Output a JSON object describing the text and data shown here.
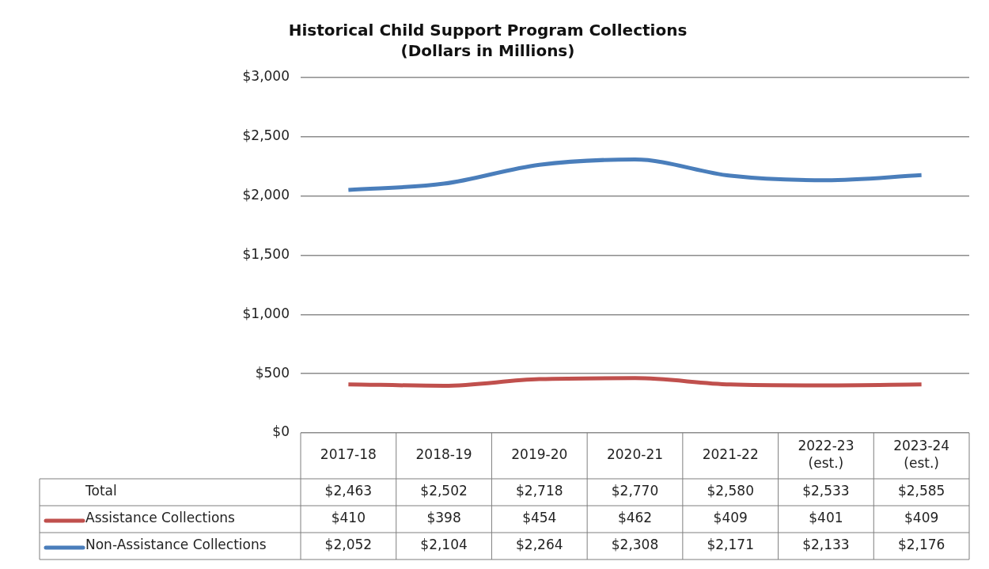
{
  "chart_data": {
    "type": "line",
    "title": "Historical Child Support Program Collections",
    "subtitle": "(Dollars in Millions)",
    "categories": [
      "2017-18",
      "2018-19",
      "2019-20",
      "2020-21",
      "2021-22",
      "2022-23 (est.)",
      "2023-24 (est.)"
    ],
    "series": [
      {
        "name": "Assistance Collections",
        "color": "#c0504d",
        "values": [
          410,
          398,
          454,
          462,
          409,
          401,
          409
        ],
        "value_labels": [
          "$410",
          "$398",
          "$454",
          "$462",
          "$409",
          "$401",
          "$409"
        ]
      },
      {
        "name": "Non-Assistance Collections",
        "color": "#4a7ebb",
        "values": [
          2052,
          2104,
          2264,
          2308,
          2171,
          2133,
          2176
        ],
        "value_labels": [
          "$2,052",
          "$2,104",
          "$2,264",
          "$2,308",
          "$2,171",
          "$2,133",
          "$2,176"
        ]
      }
    ],
    "totals": [
      "$2,463",
      "$2,502",
      "$2,718",
      "$2,770",
      "$2,580",
      "$2,533",
      "$2,585"
    ],
    "annotations": [
      "Total"
    ],
    "ylim": [
      0,
      3000
    ],
    "yticks": [
      {
        "value": 0,
        "label": "$0"
      },
      {
        "value": 500,
        "label": "$500"
      },
      {
        "value": 1000,
        "label": "$1,000"
      },
      {
        "value": 1500,
        "label": "$1,500"
      },
      {
        "value": 2000,
        "label": "$2,000"
      },
      {
        "value": 2500,
        "label": "$2,500"
      },
      {
        "value": 3000,
        "label": "$3,000"
      }
    ],
    "grid": "y",
    "legend": "bottom",
    "marker": "none",
    "line_style": "solid"
  }
}
